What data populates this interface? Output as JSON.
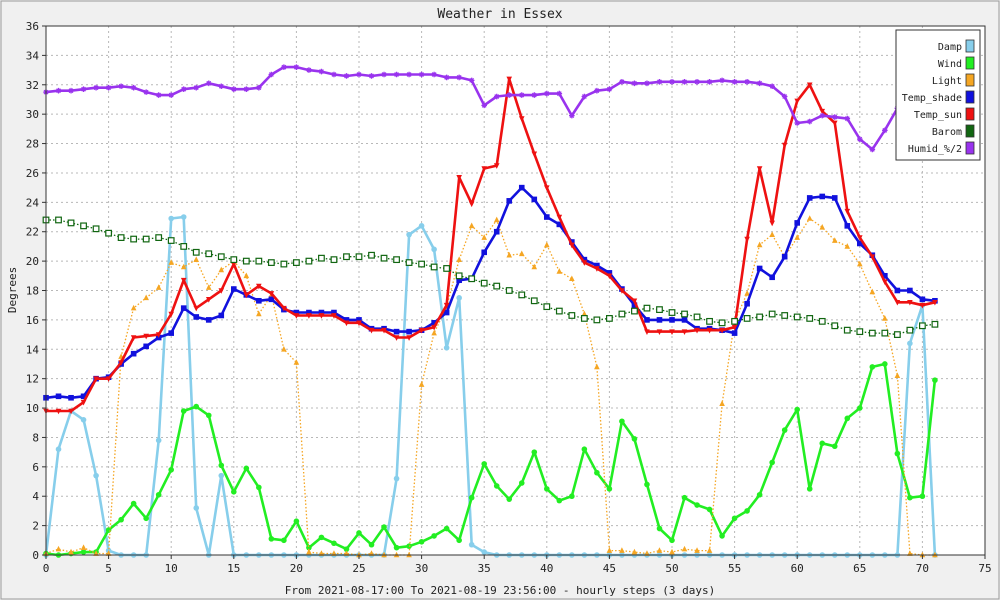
{
  "chart_data": {
    "type": "line",
    "title": "Weather in Essex",
    "xlabel": "From 2021-08-17:00 To 2021-08-19 23:56:00 - hourly steps (3 days)",
    "ylabel": "Degrees",
    "xlim": [
      0,
      75
    ],
    "ylim": [
      0,
      36
    ],
    "xticks": [
      0,
      5,
      10,
      15,
      20,
      25,
      30,
      35,
      40,
      45,
      50,
      55,
      60,
      65,
      70,
      75
    ],
    "yticks": [
      0,
      2,
      4,
      6,
      8,
      10,
      12,
      14,
      16,
      18,
      20,
      22,
      24,
      26,
      28,
      30,
      32,
      34,
      36
    ],
    "grid": true,
    "legend_position": "top-right",
    "series": [
      {
        "name": "Damp",
        "color": "#87ceeb",
        "marker": "circle",
        "dash": false,
        "values": [
          0.0,
          7.2,
          9.8,
          9.2,
          5.4,
          0.3,
          0.0,
          0.0,
          0.0,
          7.8,
          22.9,
          23.0,
          3.2,
          0.0,
          5.4,
          0.0,
          0.0,
          0.0,
          0.0,
          0.0,
          0.0,
          0.0,
          0.0,
          0.0,
          0.0,
          0.0,
          0.0,
          0.0,
          5.2,
          21.8,
          22.4,
          20.8,
          14.1,
          17.5,
          0.7,
          0.2,
          0.0,
          0.0,
          0.0,
          0.0,
          0.0,
          0.0,
          0.0,
          0.0,
          0.0,
          0.0,
          0.0,
          0.0,
          0.0,
          0.0,
          0.0,
          0.0,
          0.0,
          0.0,
          0.0,
          0.0,
          0.0,
          0.0,
          0.0,
          0.0,
          0.0,
          0.0,
          0.0,
          0.0,
          0.0,
          0.0,
          0.0,
          0.0,
          0.0,
          14.4,
          17.0,
          0.0
        ]
      },
      {
        "name": "Wind",
        "color": "#22ee22",
        "marker": "circle",
        "dash": false,
        "values": [
          0.1,
          0.0,
          0.1,
          0.2,
          0.2,
          1.7,
          2.4,
          3.5,
          2.5,
          4.1,
          5.8,
          9.8,
          10.1,
          9.5,
          6.1,
          4.3,
          5.9,
          4.6,
          1.1,
          1.0,
          2.3,
          0.5,
          1.2,
          0.8,
          0.4,
          1.5,
          0.7,
          1.9,
          0.5,
          0.6,
          0.9,
          1.3,
          1.8,
          1.0,
          3.9,
          6.2,
          4.7,
          3.8,
          4.9,
          7.0,
          4.5,
          3.7,
          4.0,
          7.2,
          5.6,
          4.5,
          9.1,
          7.9,
          4.8,
          1.8,
          1.0,
          3.9,
          3.4,
          3.1,
          1.3,
          2.5,
          3.0,
          4.1,
          6.3,
          8.5,
          9.9,
          4.5,
          7.6,
          7.4,
          9.3,
          10.0,
          12.8,
          13.0,
          6.9,
          3.9,
          4.0,
          11.9
        ]
      },
      {
        "name": "Light",
        "color": "#f5a623",
        "marker": "triangle",
        "dash": true,
        "values": [
          0.1,
          0.4,
          0.2,
          0.5,
          0.1,
          0.1,
          13.5,
          16.8,
          17.5,
          18.2,
          19.9,
          19.6,
          20.1,
          18.2,
          19.4,
          20.0,
          19.0,
          16.4,
          17.7,
          14.0,
          13.1,
          0.2,
          0.1,
          0.1,
          0.1,
          0.0,
          0.1,
          0.0,
          0.0,
          0.0,
          11.6,
          15.1,
          16.9,
          20.1,
          22.4,
          21.6,
          22.8,
          20.4,
          20.5,
          19.6,
          21.1,
          19.3,
          18.8,
          16.4,
          12.8,
          0.3,
          0.3,
          0.2,
          0.1,
          0.3,
          0.2,
          0.4,
          0.3,
          0.3,
          10.3,
          15.9,
          17.8,
          21.1,
          21.8,
          20.3,
          21.6,
          22.9,
          22.3,
          21.4,
          21.0,
          19.8,
          17.9,
          16.1,
          12.2,
          0.1,
          0.0,
          0.0
        ]
      },
      {
        "name": "Temp_shade",
        "color": "#1111dd",
        "marker": "square",
        "dash": false,
        "values": [
          10.7,
          10.8,
          10.7,
          10.8,
          12.0,
          12.1,
          13.0,
          13.7,
          14.2,
          14.8,
          15.1,
          16.8,
          16.2,
          16.0,
          16.3,
          18.1,
          17.7,
          17.3,
          17.4,
          16.7,
          16.5,
          16.5,
          16.5,
          16.5,
          16.0,
          16.0,
          15.4,
          15.4,
          15.2,
          15.2,
          15.3,
          15.8,
          16.5,
          18.7,
          18.8,
          20.6,
          22.0,
          24.1,
          25.0,
          24.2,
          23.0,
          22.5,
          21.3,
          20.1,
          19.7,
          19.2,
          18.1,
          17.0,
          16.0,
          16.0,
          16.0,
          16.0,
          15.4,
          15.4,
          15.3,
          15.1,
          17.1,
          19.5,
          18.9,
          20.3,
          22.6,
          24.3,
          24.4,
          24.3,
          22.4,
          21.2,
          20.4,
          19.0,
          18.0,
          18.0,
          17.4,
          17.3
        ]
      },
      {
        "name": "Temp_sun",
        "color": "#ee1111",
        "marker": "triangle-down",
        "dash": false,
        "values": [
          9.8,
          9.8,
          9.8,
          10.4,
          12.0,
          12.0,
          13.1,
          14.8,
          14.9,
          15.0,
          16.4,
          18.7,
          16.8,
          17.4,
          18.0,
          19.8,
          17.7,
          18.3,
          17.8,
          16.8,
          16.3,
          16.3,
          16.3,
          16.3,
          15.8,
          15.8,
          15.3,
          15.3,
          14.8,
          14.8,
          15.3,
          15.5,
          17.0,
          25.7,
          23.9,
          26.3,
          26.5,
          32.4,
          29.7,
          27.3,
          25.0,
          23.0,
          21.1,
          19.9,
          19.5,
          19.0,
          18.0,
          17.3,
          15.2,
          15.2,
          15.2,
          15.2,
          15.3,
          15.3,
          15.3,
          15.5,
          21.5,
          26.3,
          22.6,
          27.9,
          30.9,
          32.0,
          30.2,
          29.4,
          23.4,
          21.6,
          20.3,
          18.6,
          17.2,
          17.2,
          17.0,
          17.2
        ]
      },
      {
        "name": "Barom",
        "color": "#116611",
        "marker": "square-open",
        "dash": true,
        "values": [
          22.8,
          22.8,
          22.6,
          22.4,
          22.2,
          21.9,
          21.6,
          21.5,
          21.5,
          21.6,
          21.4,
          21.0,
          20.6,
          20.5,
          20.3,
          20.1,
          20.0,
          20.0,
          19.9,
          19.8,
          19.9,
          20.0,
          20.2,
          20.1,
          20.3,
          20.3,
          20.4,
          20.2,
          20.1,
          19.9,
          19.8,
          19.6,
          19.5,
          19.0,
          18.8,
          18.5,
          18.3,
          18.0,
          17.7,
          17.3,
          16.9,
          16.6,
          16.3,
          16.1,
          16.0,
          16.1,
          16.4,
          16.6,
          16.8,
          16.7,
          16.5,
          16.4,
          16.2,
          15.9,
          15.8,
          15.9,
          16.1,
          16.2,
          16.4,
          16.3,
          16.2,
          16.1,
          15.9,
          15.6,
          15.3,
          15.2,
          15.1,
          15.1,
          15.0,
          15.3,
          15.6,
          15.7
        ]
      },
      {
        "name": "Humid_%/2",
        "color": "#9933ee",
        "marker": "star",
        "dash": false,
        "values": [
          31.5,
          31.6,
          31.6,
          31.7,
          31.8,
          31.8,
          31.9,
          31.8,
          31.5,
          31.3,
          31.3,
          31.7,
          31.8,
          32.1,
          31.9,
          31.7,
          31.7,
          31.8,
          32.7,
          33.2,
          33.2,
          33.0,
          32.9,
          32.7,
          32.6,
          32.7,
          32.6,
          32.7,
          32.7,
          32.7,
          32.7,
          32.7,
          32.5,
          32.5,
          32.3,
          30.6,
          31.2,
          31.3,
          31.3,
          31.3,
          31.4,
          31.4,
          29.9,
          31.2,
          31.6,
          31.7,
          32.2,
          32.1,
          32.1,
          32.2,
          32.2,
          32.2,
          32.2,
          32.2,
          32.3,
          32.2,
          32.2,
          32.1,
          31.9,
          31.2,
          29.4,
          29.5,
          29.9,
          29.8,
          29.7,
          28.3,
          27.6,
          28.9,
          30.4,
          31.0,
          31.4,
          31.2
        ]
      }
    ]
  }
}
